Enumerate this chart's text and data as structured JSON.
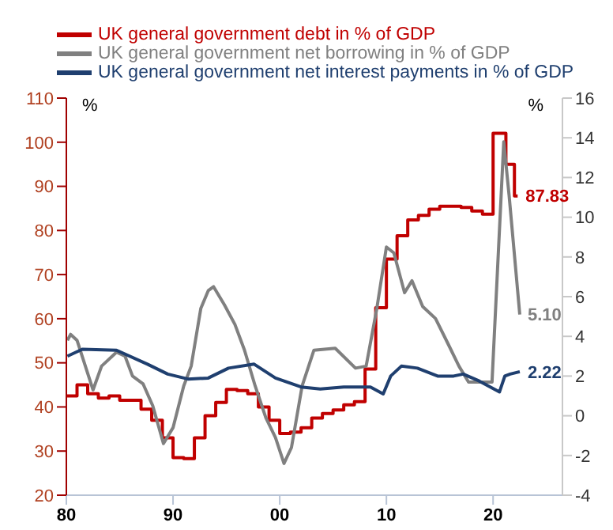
{
  "chart_data": {
    "type": "line",
    "ylabel": "%",
    "y2label": "%",
    "legend": "top left",
    "line_style": "solid",
    "xlim": [
      1980,
      2026.5
    ],
    "xticks": [
      {
        "value": 1980,
        "label": "80"
      },
      {
        "value": 1990,
        "label": "90"
      },
      {
        "value": 2000,
        "label": "00"
      },
      {
        "value": 2010,
        "label": "10"
      },
      {
        "value": 2020,
        "label": "20"
      }
    ],
    "ylim": [
      20,
      110
    ],
    "yticks": [
      20,
      30,
      40,
      50,
      60,
      70,
      80,
      90,
      100,
      110
    ],
    "y2lim": [
      -4,
      16
    ],
    "y2ticks": [
      -4,
      -2,
      0,
      2,
      4,
      6,
      8,
      10,
      12,
      14,
      16
    ],
    "series": [
      {
        "name": "UK general government debt in % of GDP",
        "type": "step",
        "color": "#c00000",
        "x": [
          1980,
          1981,
          1982,
          1983,
          1984,
          1985,
          1986,
          1987,
          1988,
          1989,
          1990,
          1991,
          1992,
          1993,
          1994,
          1995,
          1996,
          1997,
          1998,
          1999,
          2000,
          2001,
          2002,
          2003,
          2004,
          2005,
          2006,
          2007,
          2008,
          2009,
          2010,
          2011,
          2012,
          2013,
          2014,
          2015,
          2016,
          2017,
          2018,
          2019,
          2020,
          2021.2,
          2022,
          2022.3
        ],
        "values": [
          42.5,
          45,
          43,
          42,
          42.5,
          41.5,
          41.5,
          39.5,
          37,
          33,
          28.5,
          28.3,
          33,
          38,
          41,
          44,
          43.7,
          43,
          40,
          37,
          34,
          34.3,
          35.3,
          37.5,
          38.5,
          39.3,
          40.5,
          41.2,
          48.6,
          62.5,
          73.5,
          78.8,
          82.4,
          83.4,
          84.8,
          85.5,
          85.5,
          85.2,
          84.4,
          83.7,
          102,
          95,
          87.83,
          87.83
        ],
        "value_labels": [
          null,
          null,
          null,
          null,
          null,
          null,
          null,
          null,
          null,
          null,
          null,
          null,
          null,
          null,
          null,
          null,
          null,
          null,
          null,
          null,
          null,
          null,
          null,
          null,
          null,
          null,
          null,
          null,
          null,
          null,
          null,
          null,
          null,
          null,
          null,
          null,
          null,
          null,
          null,
          null,
          null,
          null,
          null,
          "87.83"
        ]
      },
      {
        "name": "UK general government net borrowing in % of GDP",
        "axis": "y2",
        "color": "#808080",
        "x": [
          1980.1,
          1980.4,
          1981,
          1982.5,
          1983.3,
          1984.7,
          1985.5,
          1986.2,
          1987.2,
          1988.1,
          1989.1,
          1990,
          1991,
          1991.7,
          1992.6,
          1993.3,
          1993.8,
          1994.8,
          1995.8,
          1996.7,
          1997.7,
          1998.7,
          1999.6,
          2000.4,
          2001.1,
          2002.1,
          2003.2,
          2005.2,
          2007.1,
          2008.1,
          2009.1,
          2010,
          2010.7,
          2011.7,
          2012.4,
          2013.4,
          2014.6,
          2015.8,
          2016.8,
          2017.7,
          2019.4,
          2019.9,
          2020.4,
          2021,
          2021.5,
          2022.5
        ],
        "values": [
          3.8,
          4.1,
          3.8,
          1.3,
          2.5,
          3.2,
          3,
          2,
          1.6,
          0.5,
          -1.4,
          -0.6,
          1.5,
          2.5,
          5.4,
          6.3,
          6.5,
          5.6,
          4.6,
          3.3,
          1.5,
          -0.1,
          -1.1,
          -2.4,
          -1.6,
          1.5,
          3.3,
          3.4,
          2.4,
          2.5,
          5.4,
          8.5,
          8.2,
          6.2,
          6.8,
          5.5,
          4.9,
          3.6,
          2.5,
          1.7,
          1.7,
          1.7,
          7.2,
          13.8,
          11.1,
          5.1
        ],
        "value_labels": [
          null,
          null,
          null,
          null,
          null,
          null,
          null,
          null,
          null,
          null,
          null,
          null,
          null,
          null,
          null,
          null,
          null,
          null,
          null,
          null,
          null,
          null,
          null,
          null,
          null,
          null,
          null,
          null,
          null,
          null,
          null,
          null,
          null,
          null,
          null,
          null,
          null,
          null,
          null,
          null,
          null,
          null,
          null,
          null,
          null,
          "5.10"
        ]
      },
      {
        "name": "UK general government net interest payments in % of GDP",
        "axis": "y2",
        "color": "#1f3f6f",
        "x": [
          1980.1,
          1981.5,
          1984.7,
          1987.6,
          1989.5,
          1991.4,
          1993.3,
          1995.2,
          1997.6,
          1999.6,
          2002,
          2003.8,
          2006,
          2008.5,
          2009.7,
          2010.4,
          2011.4,
          2012.9,
          2014.8,
          2016.3,
          2017.2,
          2018.7,
          2020.6,
          2021.1,
          2021.6,
          2022.5
        ],
        "values": [
          3,
          3.35,
          3.3,
          2.6,
          2.1,
          1.85,
          1.9,
          2.4,
          2.6,
          1.9,
          1.45,
          1.35,
          1.45,
          1.45,
          1.1,
          2,
          2.5,
          2.4,
          2,
          2,
          2.1,
          1.75,
          1.2,
          2,
          2.1,
          2.22
        ],
        "value_labels": [
          null,
          null,
          null,
          null,
          null,
          null,
          null,
          null,
          null,
          null,
          null,
          null,
          null,
          null,
          null,
          null,
          null,
          null,
          null,
          null,
          null,
          null,
          null,
          null,
          null,
          "2.22"
        ]
      }
    ]
  }
}
